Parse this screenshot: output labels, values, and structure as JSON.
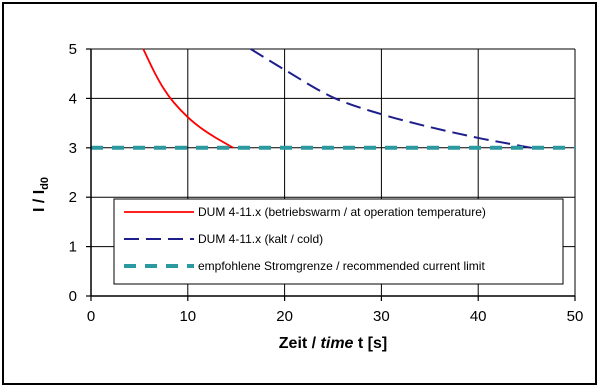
{
  "chart_data": {
    "type": "line",
    "xlabel_parts": [
      "Zeit / ",
      "time",
      " t [s]"
    ],
    "ylabel_main": "I / I",
    "ylabel_sub": "d0",
    "xlim": [
      0,
      50
    ],
    "ylim": [
      0,
      5
    ],
    "x_ticks": [
      0,
      10,
      20,
      30,
      40,
      50
    ],
    "y_ticks": [
      0,
      1,
      2,
      3,
      4,
      5
    ],
    "grid": true,
    "legend_position": "lower-right",
    "series": [
      {
        "name": "DUM 4-11.x (betriebswarm / at operation temperature)",
        "color": "#ff0000",
        "style": "solid",
        "x": [
          5.4,
          6.5,
          7.5,
          8.5,
          10.0,
          11.5,
          13.0,
          14.7
        ],
        "y": [
          5.0,
          4.55,
          4.2,
          3.93,
          3.62,
          3.38,
          3.19,
          3.0
        ]
      },
      {
        "name": "DUM 4-11.x (kalt / cold)",
        "color": "#1f1f8c",
        "style": "dashed",
        "x": [
          16.5,
          20.0,
          25.0,
          30.0,
          35.0,
          40.0,
          43.0,
          45.5
        ],
        "y": [
          5.0,
          4.58,
          4.02,
          3.68,
          3.42,
          3.2,
          3.09,
          3.0
        ]
      },
      {
        "name": "empfohlene Stromgrenze / recommended current limit",
        "color": "#2a9aa0",
        "style": "dashed-thick",
        "x": [
          0,
          50
        ],
        "y": [
          3,
          3
        ]
      }
    ]
  }
}
